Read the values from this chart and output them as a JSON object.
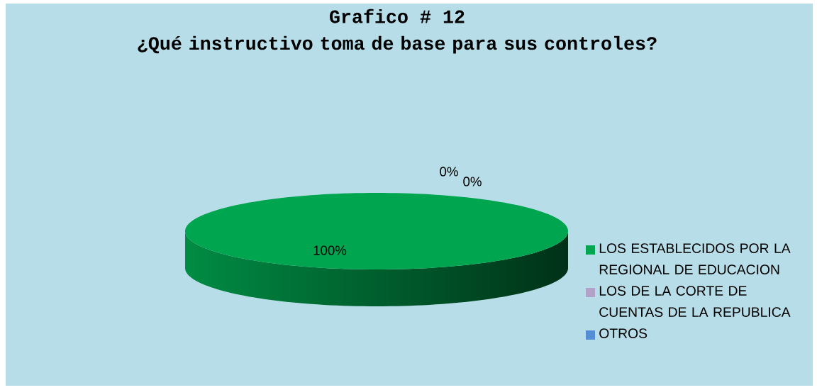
{
  "chart_data": {
    "type": "pie",
    "title": "Grafico # 12",
    "subtitle": "¿Qué instructivo toma de base para sus controles?",
    "categories": [
      "LOS ESTABLECIDOS POR LA REGIONAL DE EDUCACION",
      "LOS DE LA CORTE DE CUENTAS DE LA REPUBLICA",
      "OTROS"
    ],
    "values": [
      100,
      0,
      0
    ],
    "colors": [
      "#00a54f",
      "#b3a2c7",
      "#558ed5"
    ],
    "value_labels": [
      "100%",
      "0%",
      "0%"
    ],
    "legend": "right"
  }
}
